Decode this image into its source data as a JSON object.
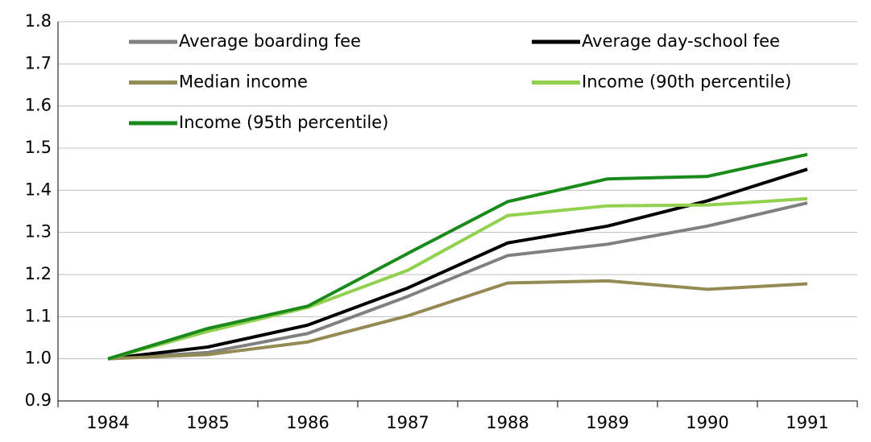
{
  "chart_data": {
    "type": "line",
    "categories": [
      "1984",
      "1985",
      "1986",
      "1987",
      "1988",
      "1989",
      "1990",
      "1991"
    ],
    "series": [
      {
        "name": "Average boarding fee",
        "color": "#808080",
        "values": [
          1.0,
          1.015,
          1.06,
          1.148,
          1.245,
          1.272,
          1.315,
          1.37
        ]
      },
      {
        "name": "Average day-school fee",
        "color": "#000000",
        "values": [
          1.0,
          1.028,
          1.08,
          1.168,
          1.275,
          1.315,
          1.375,
          1.45
        ]
      },
      {
        "name": "Median income",
        "color": "#948a54",
        "values": [
          1.0,
          1.01,
          1.04,
          1.102,
          1.18,
          1.185,
          1.165,
          1.178
        ]
      },
      {
        "name": "Income (90th percentile)",
        "color": "#92d050",
        "values": [
          1.0,
          1.065,
          1.122,
          1.21,
          1.34,
          1.363,
          1.365,
          1.38
        ]
      },
      {
        "name": "Income (95th percentile)",
        "color": "#1a8a1a",
        "values": [
          1.0,
          1.072,
          1.125,
          1.25,
          1.373,
          1.427,
          1.433,
          1.485
        ]
      }
    ],
    "ylim": [
      0.9,
      1.8
    ],
    "yticks": [
      0.9,
      {
        "value": 1,
        "label": "1.0"
      },
      1.1,
      1.2,
      1.3,
      1.4,
      1.5,
      1.6,
      1.7,
      1.8
    ],
    "grid": true,
    "legend": "top"
  }
}
